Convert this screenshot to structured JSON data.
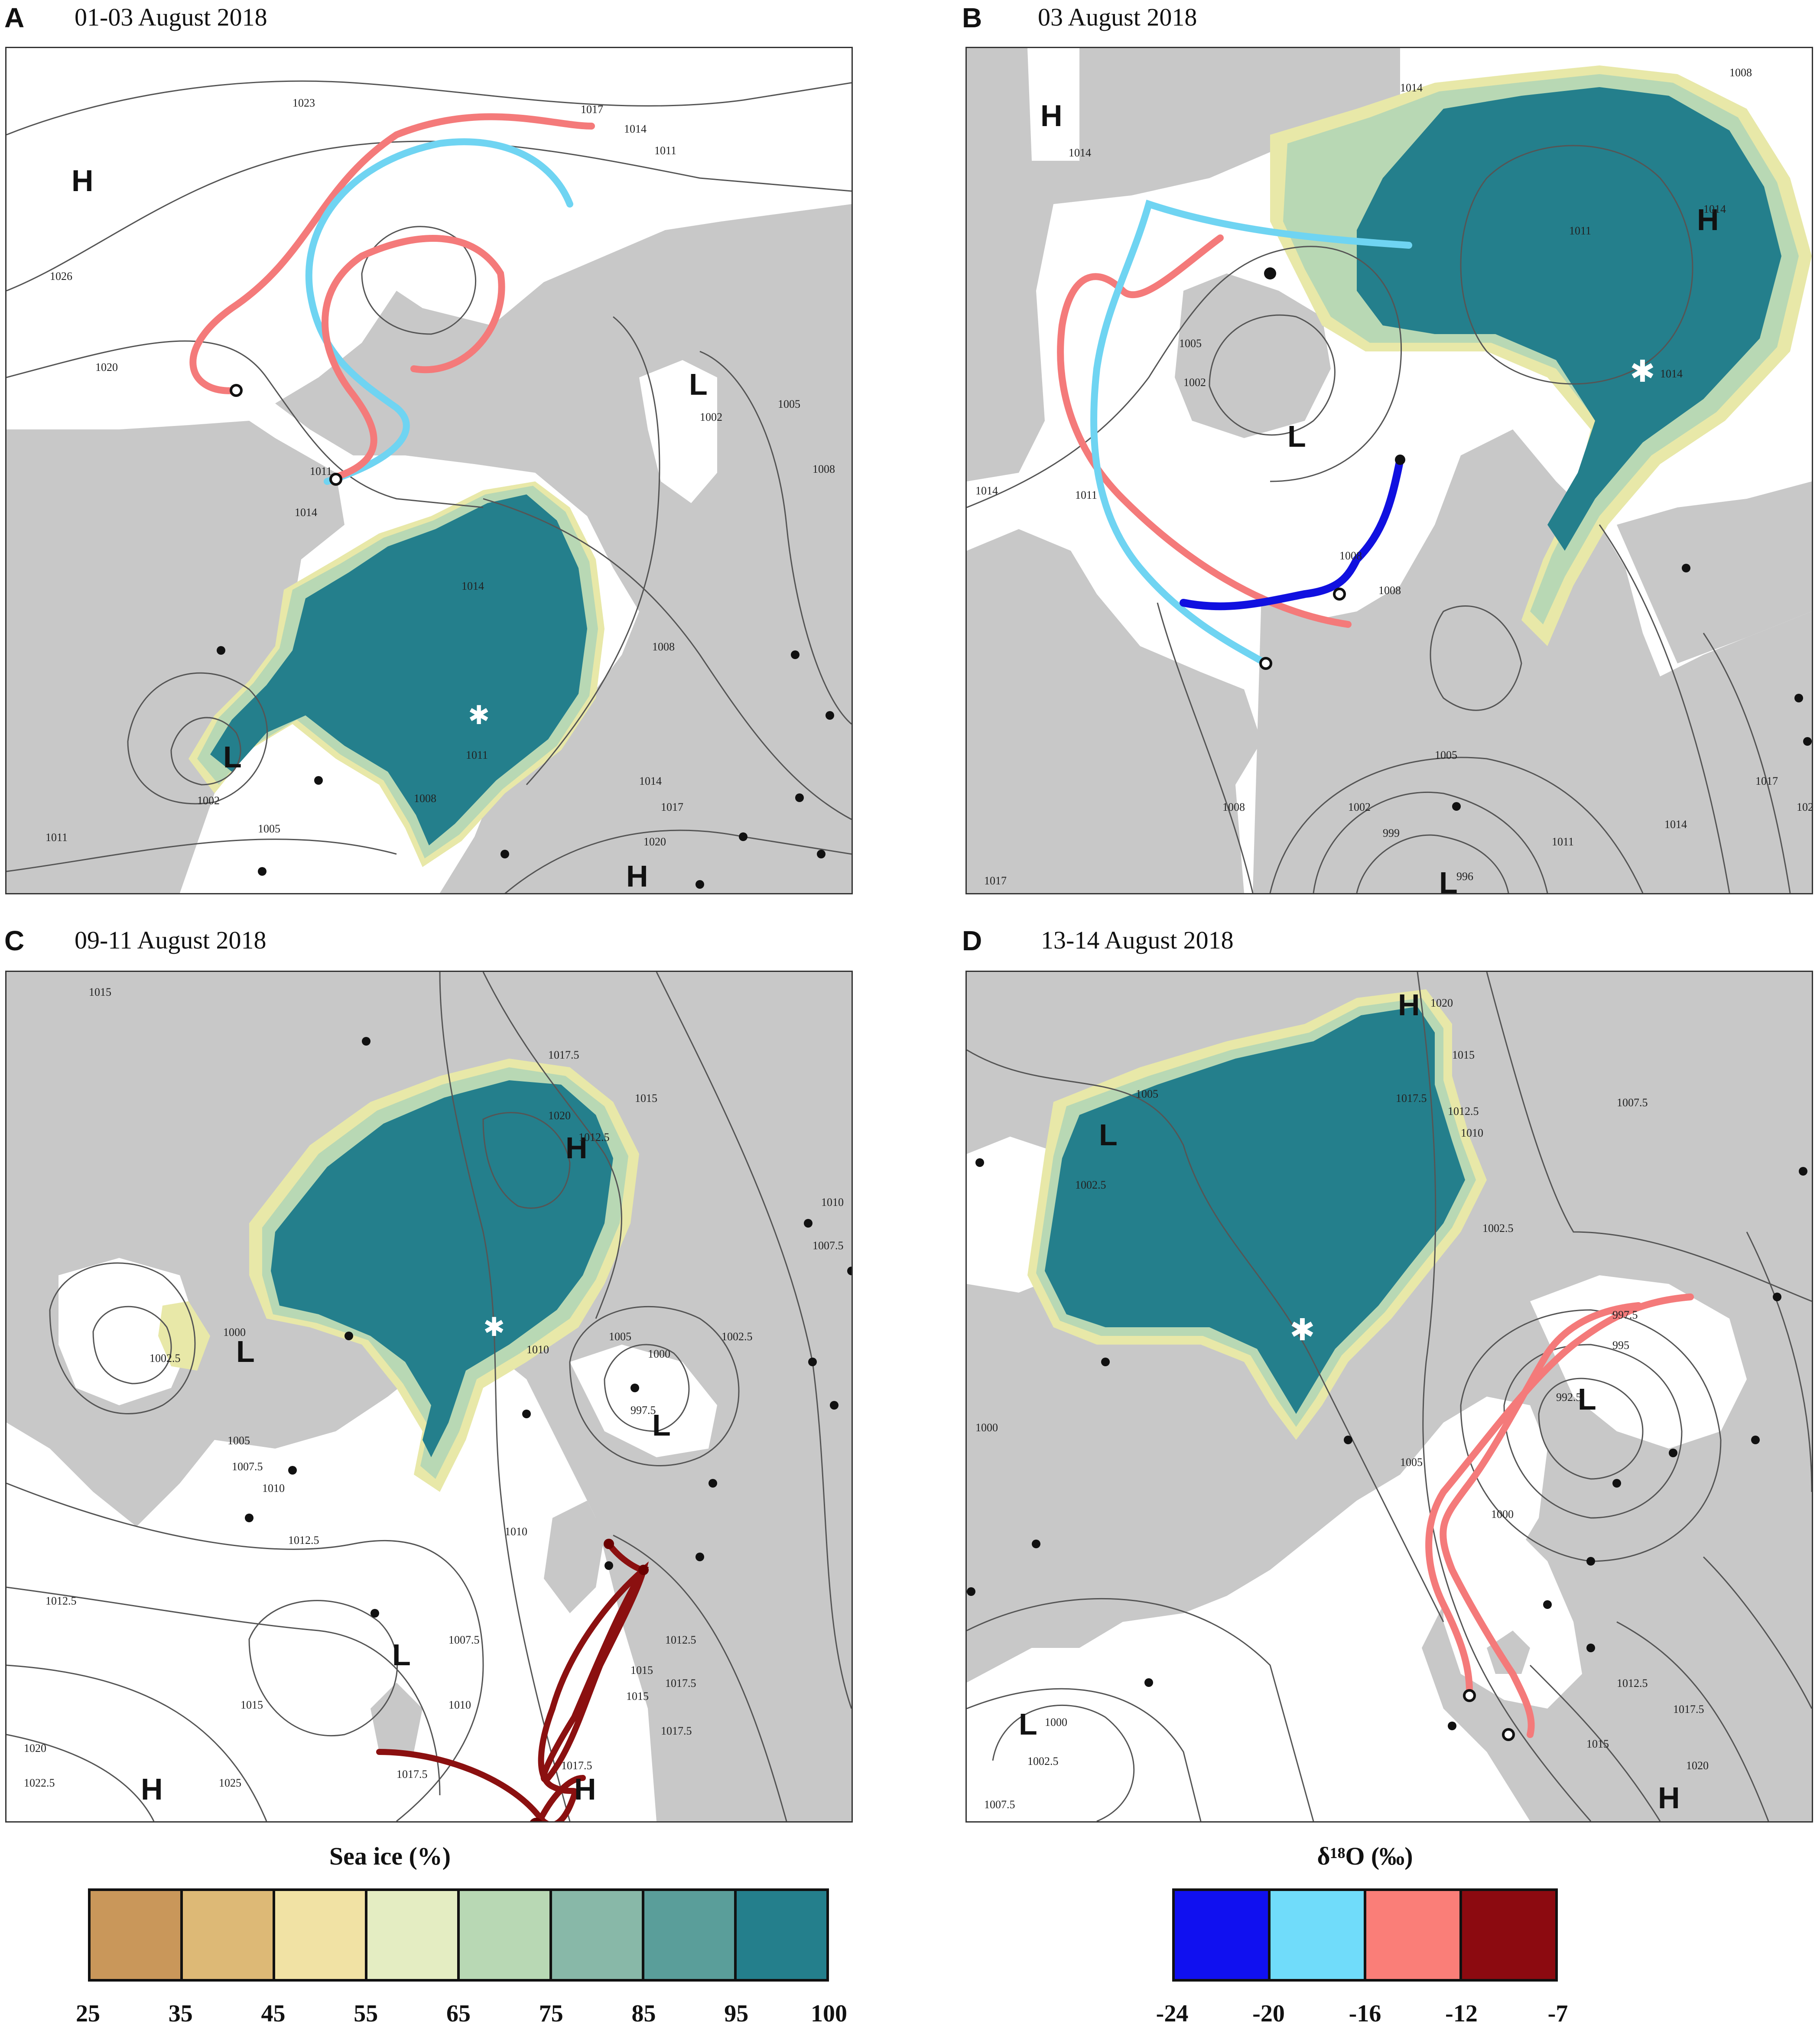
{
  "colors": {
    "land": "#c8c8c8",
    "ice_core": "#247f8c",
    "ice_edge_teal": "#5a9e9a",
    "ice_edge_green": "#b8d8b4",
    "ice_edge_yellow": "#e8e8a8",
    "ice_edge_tan": "#d4a865",
    "isobar": "#555555"
  },
  "panels": [
    {
      "id": "A",
      "letter": "A",
      "date": "01-03 August 2018",
      "pressure_centers": [
        {
          "type": "H",
          "label": "H"
        },
        {
          "type": "L",
          "label": "L"
        },
        {
          "type": "L",
          "label": "L"
        },
        {
          "type": "H",
          "label": "H"
        }
      ],
      "isobar_labels": [
        "1023",
        "1017",
        "1014",
        "1011",
        "1026",
        "1020",
        "1011",
        "1014",
        "1005",
        "1002",
        "1008",
        "1014",
        "1011",
        "1008",
        "1008",
        "1014",
        "1017",
        "1020",
        "1002",
        "1005",
        "1011"
      ],
      "trajectories": [
        {
          "color_class": "-16 to -12",
          "color": "#f47a7a"
        },
        {
          "color_class": "-20 to -16",
          "color": "#6fd4f2"
        },
        {
          "color_class": "-16 to -12",
          "color": "#f47a7a"
        }
      ]
    },
    {
      "id": "B",
      "letter": "B",
      "date": "03 August 2018",
      "pressure_centers": [
        {
          "type": "H",
          "label": "H"
        },
        {
          "type": "H",
          "label": "H"
        },
        {
          "type": "L",
          "label": "L"
        },
        {
          "type": "L",
          "label": "L"
        }
      ],
      "isobar_labels": [
        "1014",
        "1014",
        "1008",
        "1011",
        "1014",
        "1005",
        "1002",
        "1011",
        "1014",
        "1008",
        "1008",
        "1014",
        "1005",
        "1002",
        "999",
        "1008",
        "1011",
        "1014",
        "1017",
        "1020",
        "1017",
        "996"
      ],
      "trajectories": [
        {
          "color_class": "-16 to -12",
          "color": "#f47a7a"
        },
        {
          "color_class": "-20 to -16",
          "color": "#6fd4f2"
        },
        {
          "color_class": "-24 to -20",
          "color": "#1010e0"
        }
      ]
    },
    {
      "id": "C",
      "letter": "C",
      "date": "09-11 August 2018",
      "pressure_centers": [
        {
          "type": "H",
          "label": "H"
        },
        {
          "type": "L",
          "label": "L"
        },
        {
          "type": "L",
          "label": "L"
        },
        {
          "type": "L",
          "label": "L"
        },
        {
          "type": "H",
          "label": "H"
        },
        {
          "type": "H",
          "label": "H"
        }
      ],
      "isobar_labels": [
        "1015",
        "1017.5",
        "1020",
        "1012.5",
        "1015",
        "1010",
        "1007.5",
        "1000",
        "1002.5",
        "1005",
        "1007.5",
        "1010",
        "1012.5",
        "1010",
        "1005",
        "1000",
        "1002.5",
        "997.5",
        "1010",
        "1007.5",
        "1012.5",
        "1015",
        "1010",
        "1015",
        "1017.5",
        "1020",
        "1022.5",
        "1025",
        "1017.5",
        "1017.5",
        "1012.5",
        "1015",
        "1017.5"
      ],
      "trajectories": [
        {
          "color_class": "-12 to -7",
          "color": "#8b1010"
        }
      ]
    },
    {
      "id": "D",
      "letter": "D",
      "date": "13-14 August 2018",
      "pressure_centers": [
        {
          "type": "H",
          "label": "H"
        },
        {
          "type": "L",
          "label": "L"
        },
        {
          "type": "L",
          "label": "L"
        },
        {
          "type": "L",
          "label": "L"
        },
        {
          "type": "H",
          "label": "H"
        }
      ],
      "isobar_labels": [
        "1020",
        "1015",
        "1017.5",
        "1012.5",
        "1010",
        "1007.5",
        "1005",
        "1002.5",
        "997.5",
        "995",
        "992.5",
        "1000",
        "1005",
        "1002.5",
        "1000",
        "1002.5",
        "1007.5",
        "1012.5",
        "1015",
        "1017.5",
        "1020"
      ],
      "trajectories": [
        {
          "color_class": "-16 to -12",
          "color": "#f47a7a"
        },
        {
          "color_class": "-16 to -12",
          "color": "#f47a7a"
        }
      ]
    }
  ],
  "legend_sea_ice": {
    "title": "Sea ice (%)",
    "ticks": [
      "25",
      "35",
      "45",
      "55",
      "65",
      "75",
      "85",
      "95",
      "100"
    ],
    "colors": [
      "#c9975a",
      "#ddb976",
      "#f1e2a4",
      "#e4edc2",
      "#b8d8b4",
      "#88b8a8",
      "#5a9e9a",
      "#247f8c"
    ]
  },
  "legend_d18o": {
    "title": "δ¹⁸O (‰)",
    "ticks": [
      "-24",
      "-20",
      "-16",
      "-12",
      "-7"
    ],
    "colors": [
      "#1010f0",
      "#70dcfa",
      "#fa7e78",
      "#8c0a10"
    ]
  }
}
